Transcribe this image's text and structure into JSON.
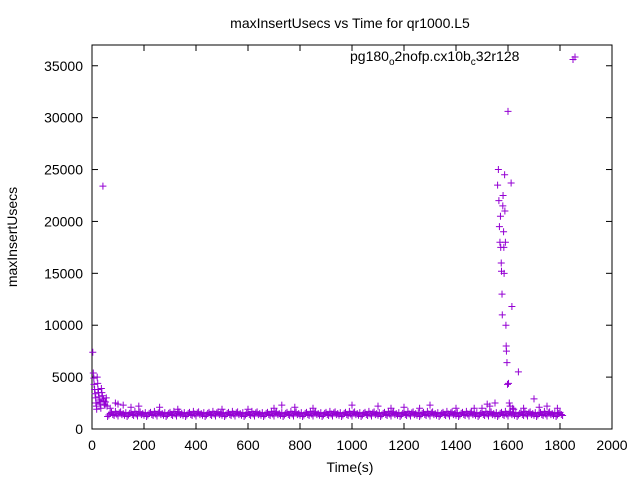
{
  "chart_data": {
    "type": "scatter",
    "title": "maxInsertUsecs vs Time for qr1000.L5",
    "xlabel": "Time(s)",
    "ylabel": "maxInsertUsecs",
    "xlim": [
      0,
      2000
    ],
    "ylim": [
      0,
      37000
    ],
    "xticks": [
      0,
      200,
      400,
      600,
      800,
      1000,
      1200,
      1400,
      1600,
      1800,
      2000
    ],
    "yticks": [
      0,
      5000,
      10000,
      15000,
      20000,
      25000,
      30000,
      35000
    ],
    "grid": false,
    "legend_position": "top-right",
    "marker": "plus",
    "series": [
      {
        "name_parts": [
          "pg180",
          "o",
          "2nofp.cx10b",
          "c",
          "32r128"
        ],
        "color": "#9400d3",
        "baseline": {
          "x_range": [
            60,
            1810
          ],
          "step": 5,
          "y_values": [
            1200,
            1350,
            1500,
            1600,
            1400,
            1300,
            1700,
            1450,
            1250,
            1550,
            1650,
            1380,
            1480,
            1320,
            1580
          ]
        },
        "points": [
          [
            3,
            7400
          ],
          [
            5,
            5400
          ],
          [
            7,
            4900
          ],
          [
            8,
            4300
          ],
          [
            10,
            3800
          ],
          [
            12,
            3400
          ],
          [
            14,
            3000
          ],
          [
            15,
            2500
          ],
          [
            17,
            2200
          ],
          [
            18,
            1900
          ],
          [
            20,
            5000
          ],
          [
            22,
            4400
          ],
          [
            23,
            3800
          ],
          [
            25,
            3500
          ],
          [
            27,
            3100
          ],
          [
            28,
            2800
          ],
          [
            30,
            2600
          ],
          [
            32,
            2400
          ],
          [
            34,
            2000
          ],
          [
            36,
            3900
          ],
          [
            38,
            3500
          ],
          [
            40,
            3200
          ],
          [
            42,
            23400
          ],
          [
            44,
            2900
          ],
          [
            46,
            2700
          ],
          [
            48,
            2400
          ],
          [
            50,
            2300
          ],
          [
            52,
            2600
          ],
          [
            55,
            3000
          ],
          [
            58,
            2200
          ],
          [
            70,
            2000
          ],
          [
            90,
            2500
          ],
          [
            100,
            2400
          ],
          [
            120,
            2300
          ],
          [
            150,
            2100
          ],
          [
            180,
            2200
          ],
          [
            260,
            2100
          ],
          [
            330,
            1900
          ],
          [
            500,
            1900
          ],
          [
            600,
            1900
          ],
          [
            700,
            2000
          ],
          [
            730,
            2300
          ],
          [
            780,
            2100
          ],
          [
            850,
            2000
          ],
          [
            1000,
            2300
          ],
          [
            1100,
            2200
          ],
          [
            1150,
            2000
          ],
          [
            1200,
            2100
          ],
          [
            1260,
            2000
          ],
          [
            1300,
            2300
          ],
          [
            1400,
            2000
          ],
          [
            1470,
            2000
          ],
          [
            1500,
            2000
          ],
          [
            1520,
            2400
          ],
          [
            1530,
            2200
          ],
          [
            1550,
            2500
          ],
          [
            1560,
            23500
          ],
          [
            1563,
            25000
          ],
          [
            1565,
            22000
          ],
          [
            1567,
            19500
          ],
          [
            1569,
            18000
          ],
          [
            1571,
            20500
          ],
          [
            1572,
            17500
          ],
          [
            1574,
            16000
          ],
          [
            1575,
            15200
          ],
          [
            1577,
            13000
          ],
          [
            1578,
            11000
          ],
          [
            1580,
            21500
          ],
          [
            1581,
            22500
          ],
          [
            1583,
            19000
          ],
          [
            1584,
            17500
          ],
          [
            1585,
            15000
          ],
          [
            1587,
            24500
          ],
          [
            1588,
            21000
          ],
          [
            1590,
            18000
          ],
          [
            1592,
            10000
          ],
          [
            1593,
            8000
          ],
          [
            1594,
            7500
          ],
          [
            1596,
            6400
          ],
          [
            1598,
            4300
          ],
          [
            1600,
            30600
          ],
          [
            1602,
            4400
          ],
          [
            1605,
            2500
          ],
          [
            1608,
            2200
          ],
          [
            1612,
            23700
          ],
          [
            1615,
            11800
          ],
          [
            1618,
            2000
          ],
          [
            1622,
            1900
          ],
          [
            1640,
            5500
          ],
          [
            1660,
            2000
          ],
          [
            1700,
            2900
          ],
          [
            1720,
            2100
          ],
          [
            1750,
            2200
          ],
          [
            1790,
            2000
          ],
          [
            1850,
            35600
          ]
        ]
      }
    ]
  }
}
